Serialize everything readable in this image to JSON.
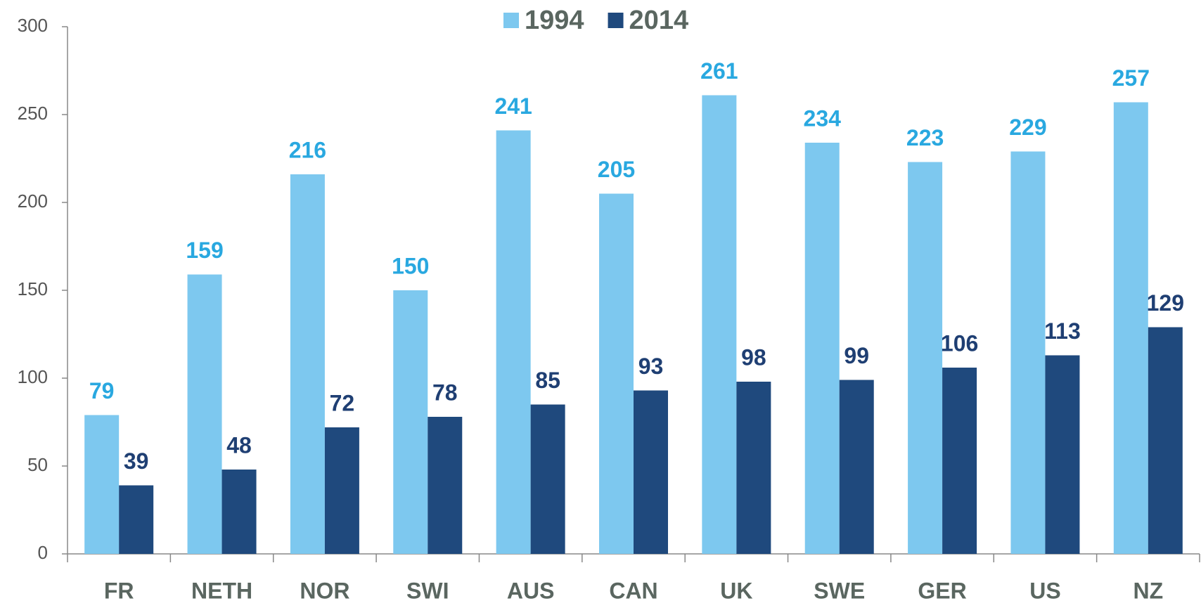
{
  "chart_data": {
    "type": "bar",
    "categories": [
      "FR",
      "NETH",
      "NOR",
      "SWI",
      "AUS",
      "CAN",
      "UK",
      "SWE",
      "GER",
      "US",
      "NZ"
    ],
    "series": [
      {
        "name": "1994",
        "color": "#7dc8ef",
        "label_color": "#29a8e0",
        "values": [
          79,
          159,
          216,
          150,
          241,
          205,
          261,
          234,
          223,
          229,
          257
        ]
      },
      {
        "name": "2014",
        "color": "#1f497d",
        "label_color": "#1f3f73",
        "values": [
          39,
          48,
          72,
          78,
          85,
          93,
          98,
          99,
          106,
          113,
          129
        ]
      }
    ],
    "ylim": [
      0,
      300
    ],
    "yticks": [
      0,
      50,
      100,
      150,
      200,
      250,
      300
    ],
    "legend": "top"
  }
}
